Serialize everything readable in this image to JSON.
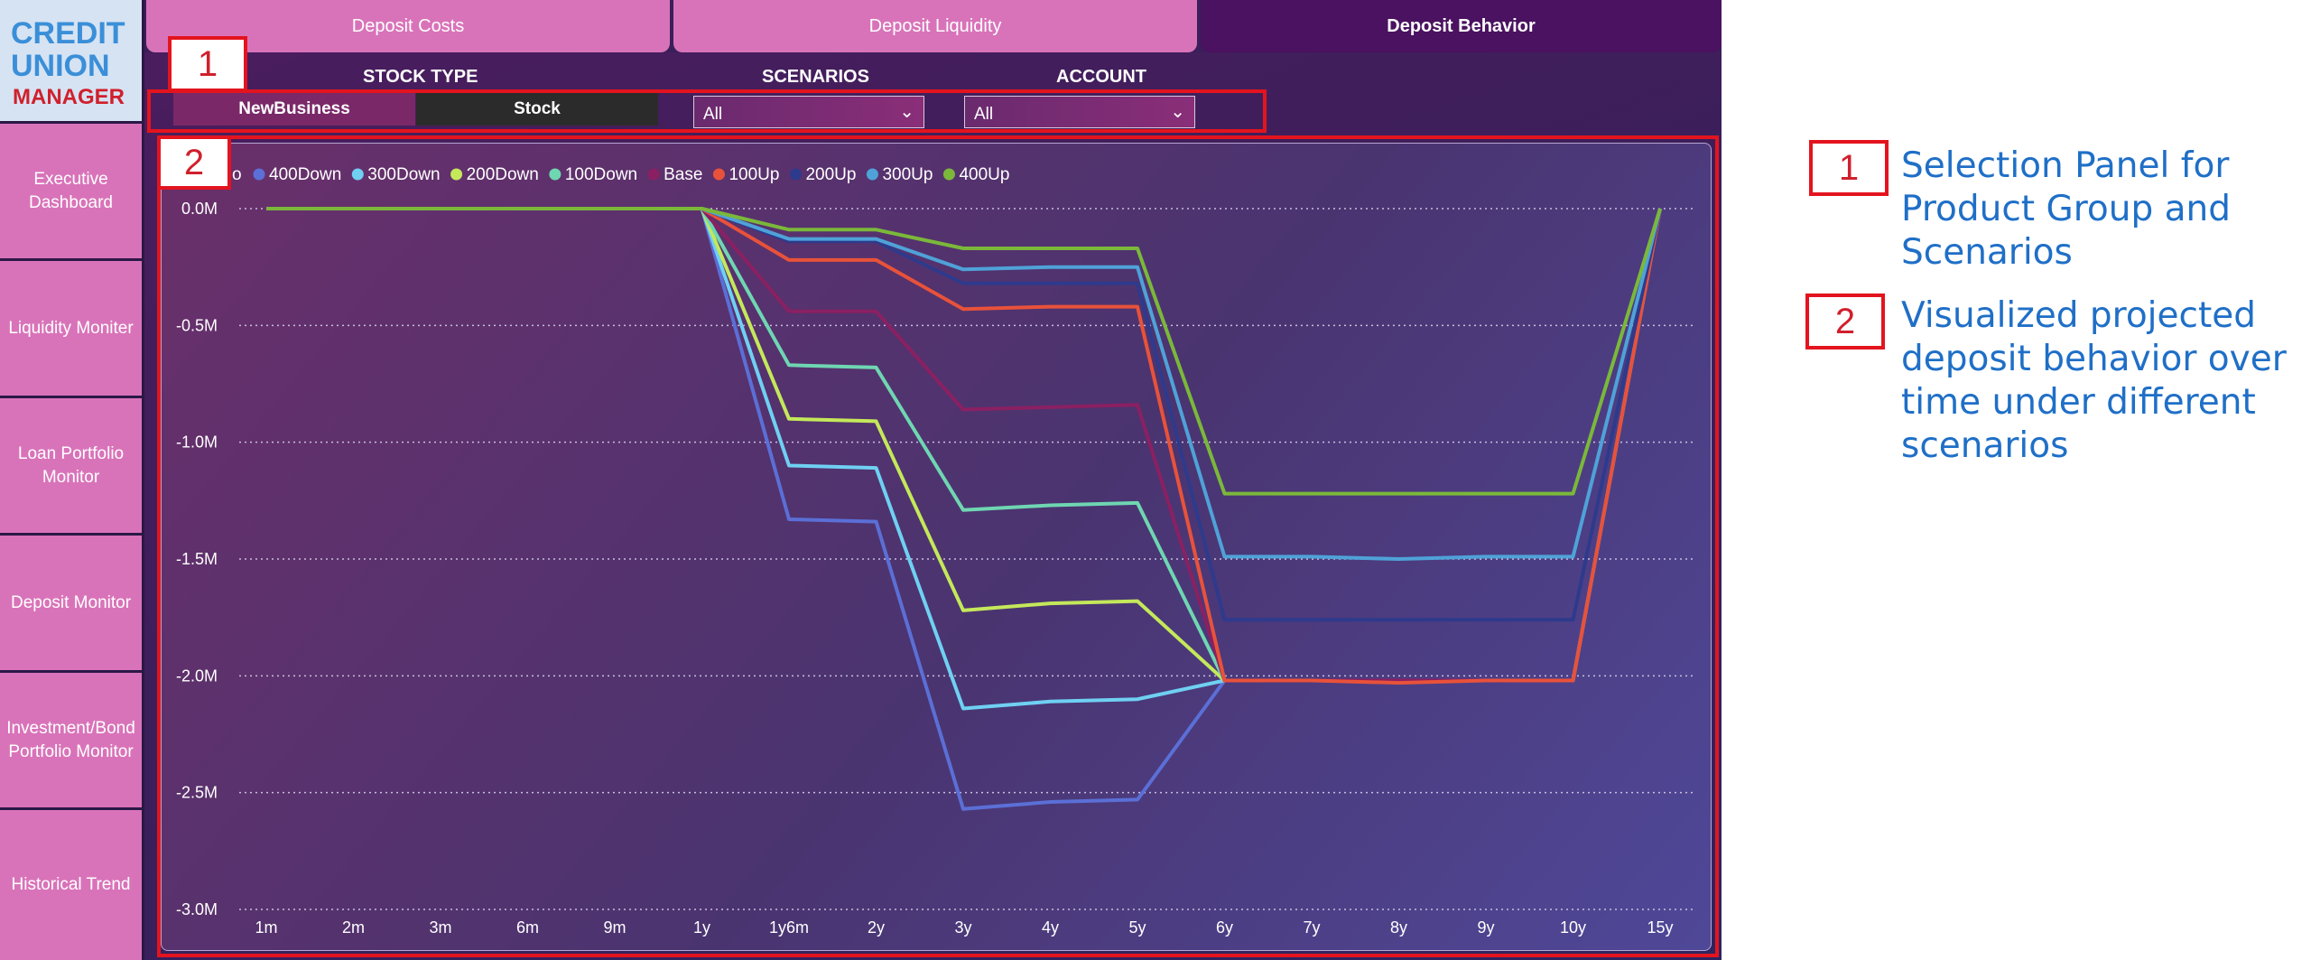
{
  "app": {
    "logo_line1": "CREDIT",
    "logo_line2": "UNION",
    "logo_line3": "MANAGER"
  },
  "sidebar": {
    "items": [
      {
        "label": "Executive Dashboard"
      },
      {
        "label": "Liquidity Moniter"
      },
      {
        "label": "Loan Portfolio Monitor"
      },
      {
        "label": "Deposit Monitor"
      },
      {
        "label": "Investment/Bond Portfolio Monitor"
      },
      {
        "label": "Historical Trend"
      }
    ]
  },
  "tabs": [
    {
      "label": "Deposit Costs",
      "active": false
    },
    {
      "label": "Deposit Liquidity",
      "active": false
    },
    {
      "label": "Deposit Behavior",
      "active": true
    }
  ],
  "filters": {
    "stock_type_label": "STOCK TYPE",
    "stock_type_options": [
      "NewBusiness",
      "Stock"
    ],
    "scenarios_label": "SCENARIOS",
    "scenarios_value": "All",
    "account_label": "ACCOUNT",
    "account_value": "All"
  },
  "legend_prefix": "o",
  "chart_data": {
    "type": "line",
    "x": [
      "1m",
      "2m",
      "3m",
      "6m",
      "9m",
      "1y",
      "1y6m",
      "2y",
      "3y",
      "4y",
      "5y",
      "6y",
      "7y",
      "8y",
      "9y",
      "10y",
      "15y"
    ],
    "y_ticks": [
      "0.0M",
      "-0.5M",
      "-1.0M",
      "-1.5M",
      "-2.0M",
      "-2.5M",
      "-3.0M"
    ],
    "ylim": [
      -3.0,
      0.0
    ],
    "y_unit": "M",
    "grid": true,
    "legend_position": "top-left",
    "series": [
      {
        "name": "400Down",
        "color": "#5b6fd6",
        "values": [
          0,
          0,
          0,
          0,
          0,
          0,
          -1.33,
          -1.34,
          -2.57,
          -2.54,
          -2.53,
          -2.02,
          -2.02,
          -2.02,
          -2.02,
          -2.02,
          0
        ]
      },
      {
        "name": "300Down",
        "color": "#6fd0f2",
        "values": [
          0,
          0,
          0,
          0,
          0,
          0,
          -1.1,
          -1.11,
          -2.14,
          -2.11,
          -2.1,
          -2.02,
          -2.02,
          -2.02,
          -2.02,
          -2.02,
          0
        ]
      },
      {
        "name": "200Down",
        "color": "#c4e85a",
        "values": [
          0,
          0,
          0,
          0,
          0,
          0,
          -0.9,
          -0.91,
          -1.72,
          -1.69,
          -1.68,
          -2.02,
          -2.02,
          -2.02,
          -2.02,
          -2.02,
          0
        ]
      },
      {
        "name": "100Down",
        "color": "#6fd6b2",
        "values": [
          0,
          0,
          0,
          0,
          0,
          0,
          -0.67,
          -0.68,
          -1.29,
          -1.27,
          -1.26,
          -2.02,
          -2.02,
          -2.02,
          -2.02,
          -2.02,
          0
        ]
      },
      {
        "name": "Base",
        "color": "#8a2062",
        "values": [
          0,
          0,
          0,
          0,
          0,
          0,
          -0.44,
          -0.44,
          -0.86,
          -0.85,
          -0.84,
          -2.02,
          -2.02,
          -2.02,
          -2.02,
          -2.02,
          0
        ]
      },
      {
        "name": "100Up",
        "color": "#e8523a",
        "values": [
          0,
          0,
          0,
          0,
          0,
          0,
          -0.22,
          -0.22,
          -0.43,
          -0.42,
          -0.42,
          -2.02,
          -2.02,
          -2.03,
          -2.02,
          -2.02,
          0
        ]
      },
      {
        "name": "200Up",
        "color": "#2e3a8c",
        "values": [
          0,
          0,
          0,
          0,
          0,
          0,
          -0.14,
          -0.14,
          -0.32,
          -0.32,
          -0.32,
          -1.76,
          -1.76,
          -1.76,
          -1.76,
          -1.76,
          0
        ]
      },
      {
        "name": "300Up",
        "color": "#4fa2d8",
        "values": [
          0,
          0,
          0,
          0,
          0,
          0,
          -0.13,
          -0.13,
          -0.26,
          -0.25,
          -0.25,
          -1.49,
          -1.49,
          -1.5,
          -1.49,
          -1.49,
          0
        ]
      },
      {
        "name": "400Up",
        "color": "#7bb83a",
        "values": [
          0,
          0,
          0,
          0,
          0,
          0,
          -0.09,
          -0.09,
          -0.17,
          -0.17,
          -0.17,
          -1.22,
          -1.22,
          -1.22,
          -1.22,
          -1.22,
          0
        ]
      }
    ]
  },
  "annotations": [
    {
      "number": "1",
      "text": "Selection Panel for Product Group and Scenarios"
    },
    {
      "number": "2",
      "text": "Visualized projected deposit behavior over time under different scenarios"
    }
  ],
  "colors": {
    "highlight": "#e3141e",
    "annotation_text": "#1f6fc7",
    "nav_pink": "#d973b9",
    "dashboard_bg": "#3a1f5a"
  }
}
